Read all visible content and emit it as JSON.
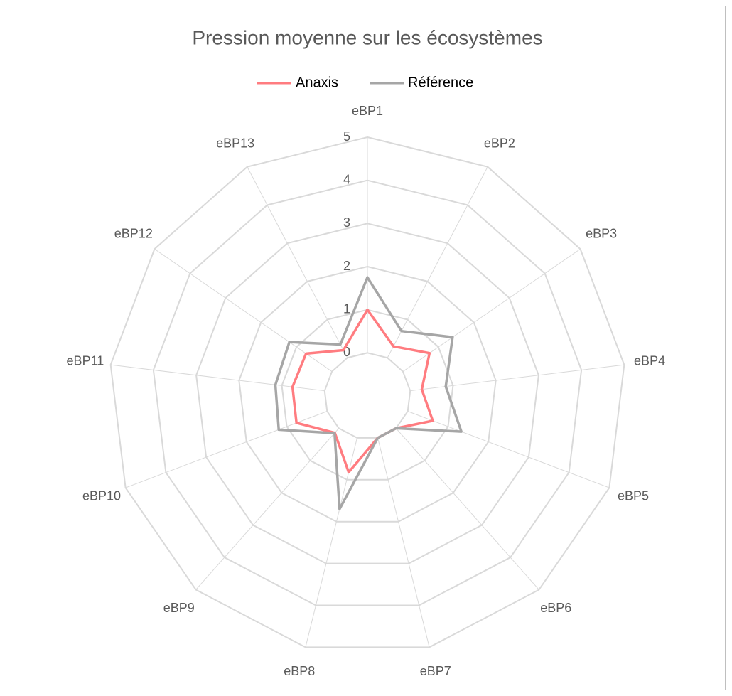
{
  "chart_data": {
    "type": "radar",
    "title": "Pression moyenne sur les écosystèmes",
    "categories": [
      "eBP1",
      "eBP2",
      "eBP3",
      "eBP4",
      "eBP5",
      "eBP6",
      "eBP7",
      "eBP8",
      "eBP9",
      "eBP10",
      "eBP11",
      "eBP12",
      "eBP13"
    ],
    "series": [
      {
        "name": "Anaxis",
        "color": "#ff7c80",
        "values": [
          1.0,
          0.3,
          0.75,
          0.27,
          0.62,
          0.0,
          0.0,
          0.82,
          0.14,
          0.76,
          0.75,
          0.73,
          0.2
        ]
      },
      {
        "name": "Référence",
        "color": "#a6a6a6",
        "values": [
          1.75,
          0.7,
          1.4,
          0.83,
          1.33,
          0.0,
          0.0,
          1.7,
          0.15,
          1.2,
          1.15,
          1.2,
          0.35
        ]
      }
    ],
    "ylim": [
      -1,
      5
    ],
    "yticks": [
      0,
      1,
      2,
      3,
      4,
      5
    ],
    "grid": true,
    "legend": "top"
  }
}
